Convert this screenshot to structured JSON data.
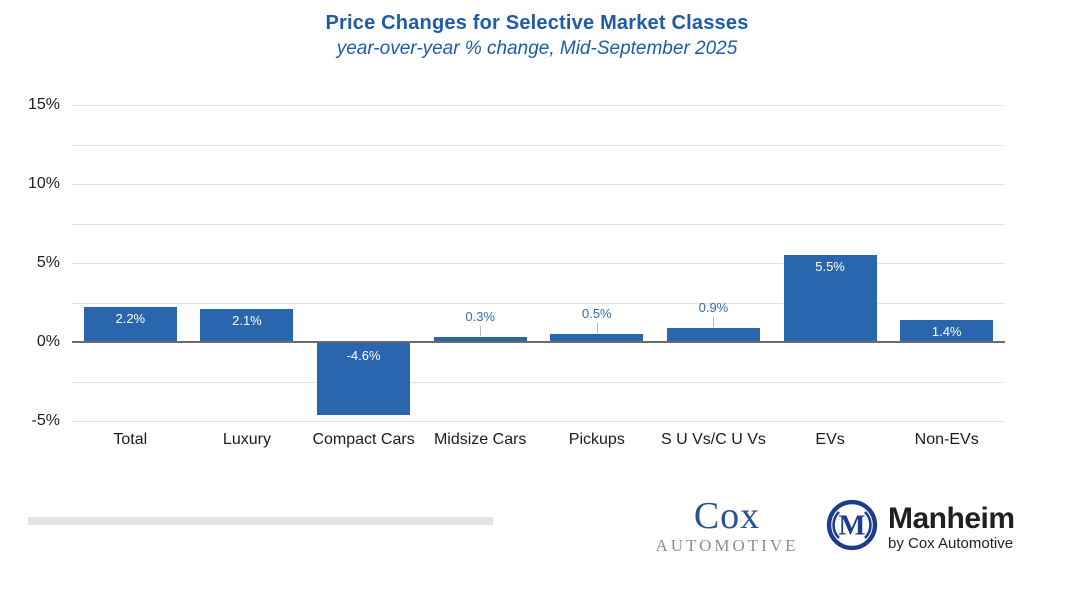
{
  "header": {
    "title": "Price Changes for Selective Market Classes",
    "subtitle": "year-over-year % change, Mid-September 2025"
  },
  "chart_data": {
    "type": "bar",
    "title": "Price Changes for Selective Market Classes",
    "subtitle": "year-over-year % change, Mid-September 2025",
    "categories": [
      "Total",
      "Luxury",
      "Compact Cars",
      "Midsize Cars",
      "Pickups",
      "S U Vs/C U Vs",
      "EVs",
      "Non-EVs"
    ],
    "values": [
      2.2,
      2.1,
      -4.6,
      0.3,
      0.5,
      0.9,
      5.5,
      1.4
    ],
    "value_labels": [
      "2.2%",
      "2.1%",
      "-4.6%",
      "0.3%",
      "0.5%",
      "0.9%",
      "5.5%",
      "1.4%"
    ],
    "xlabel": "",
    "ylabel": "",
    "ylim": [
      -5,
      15
    ],
    "yticks": [
      {
        "value": 15,
        "label": "15%"
      },
      {
        "value": 10,
        "label": "10%"
      },
      {
        "value": 5,
        "label": "5%"
      },
      {
        "value": 0,
        "label": "0%"
      },
      {
        "value": -5,
        "label": "-5%"
      }
    ],
    "gridline_step": 2.5,
    "grid": true,
    "legend": "none",
    "bar_color": "#2a66ad",
    "inside_label_color": "#ffffff",
    "outside_label_color": "#2f6eb3",
    "leader_line_color": "#b9b9b9",
    "zero_line_color": "#6b6b6b",
    "gridline_color": "#e2e2e2"
  },
  "footer": {
    "cox_logo": {
      "name": "Cox",
      "sub": "AUTOMOTIVE"
    },
    "manheim_logo": {
      "monogram": "M",
      "name": "Manheim",
      "tagline": "by Cox Automotive"
    }
  },
  "colors": {
    "title_blue": "#1d5bab",
    "bar_blue": "#2a66ad",
    "cox_blue": "#2b5291",
    "manheim_navy": "#1b3c8f",
    "logo_gray": "#8f8f8f",
    "axis_text": "#1d1d1d",
    "divider_gray": "#e4e4e4"
  }
}
